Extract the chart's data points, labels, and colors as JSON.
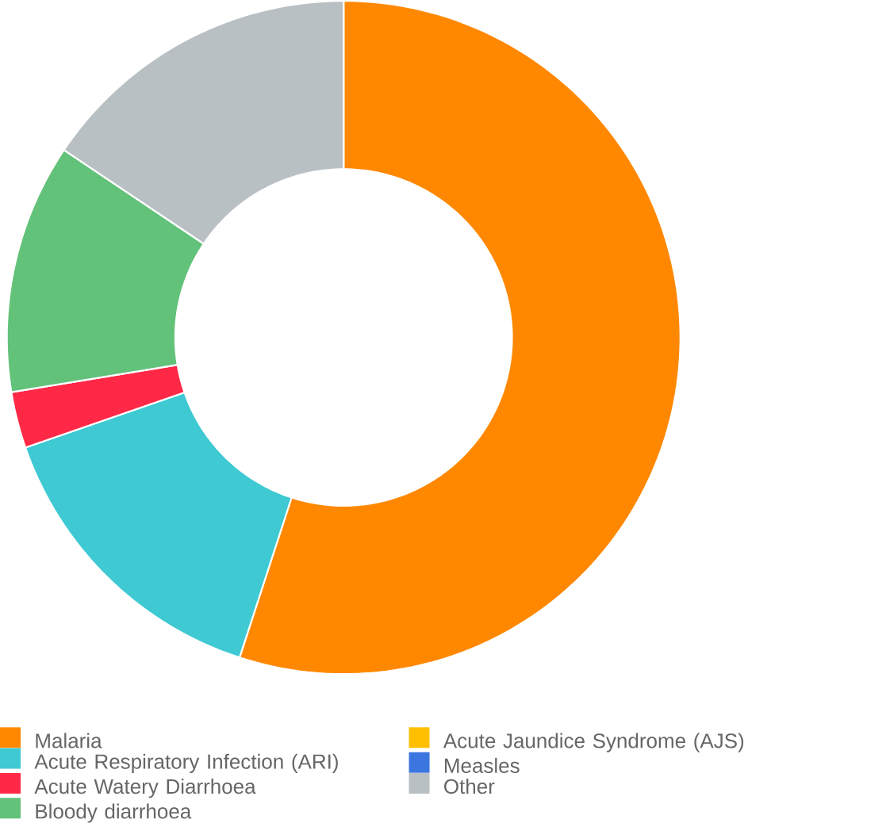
{
  "chart_data": {
    "type": "donut",
    "categories": [
      "Malaria",
      "Acute Respiratory Infection (ARI)",
      "Acute Watery Diarrhoea",
      "Bloody diarrhoea",
      "Acute Jaundice Syndrome (AJS)",
      "Measles",
      "Other"
    ],
    "values": [
      55,
      14.7,
      2.7,
      12,
      0,
      0,
      15.6
    ],
    "colors": [
      "#ff8800",
      "#3ec9d3",
      "#ff2846",
      "#63c27a",
      "#ffbf00",
      "#3a75e0",
      "#b9c0c4"
    ],
    "legend": "bottom"
  }
}
